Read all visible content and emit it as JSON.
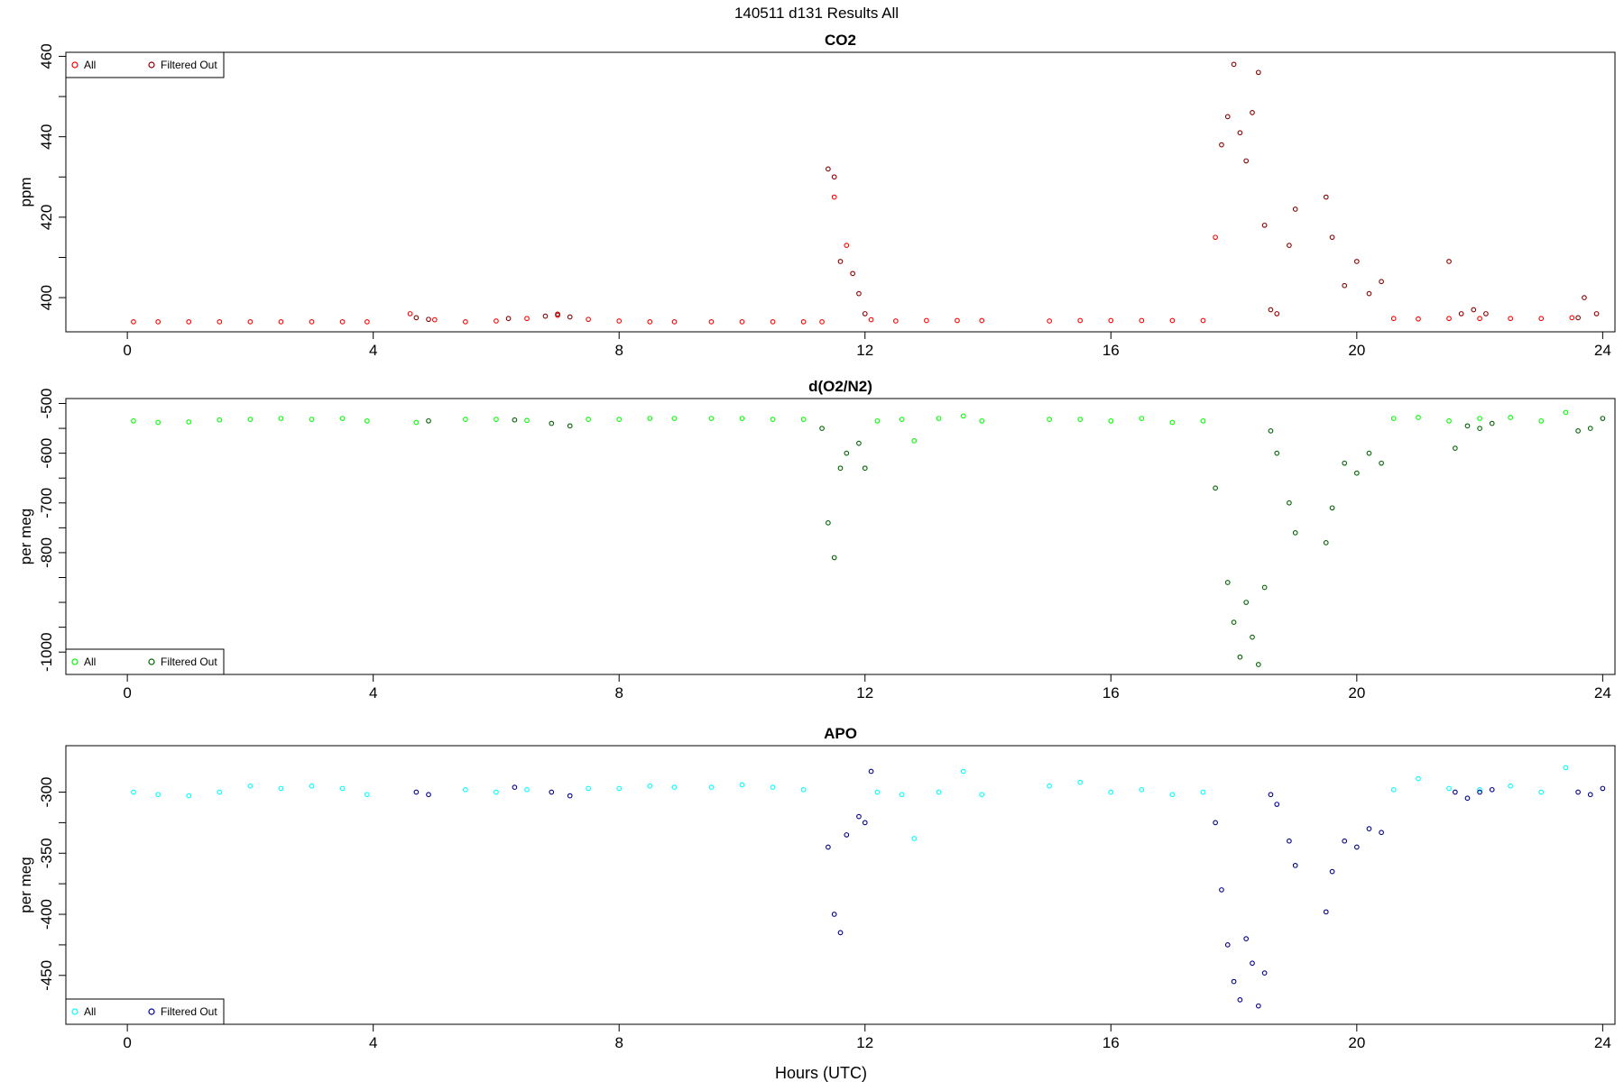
{
  "figure": {
    "title": "140511   d131   Results All",
    "xlabel": "Hours (UTC)"
  },
  "chart_data": [
    {
      "type": "scatter",
      "title": "CO2",
      "xlabel": "Hours (UTC)",
      "ylabel": "ppm",
      "xlim": [
        -1,
        24.2
      ],
      "ylim": [
        391.5,
        461
      ],
      "xticks": [
        0,
        4,
        8,
        12,
        16,
        20,
        24
      ],
      "yticks": [
        400,
        420,
        440,
        460
      ],
      "grid": false,
      "legend_position": "top-left",
      "series": [
        {
          "name": "All",
          "color": "#ff0000",
          "points": [
            [
              0.1,
              394
            ],
            [
              0.5,
              394
            ],
            [
              1.0,
              394
            ],
            [
              1.5,
              394
            ],
            [
              2.0,
              394
            ],
            [
              2.5,
              394
            ],
            [
              3.0,
              394
            ],
            [
              3.5,
              394
            ],
            [
              3.9,
              394
            ],
            [
              4.6,
              396
            ],
            [
              5.0,
              394.5
            ],
            [
              5.5,
              394
            ],
            [
              6.0,
              394.2
            ],
            [
              6.5,
              394.8
            ],
            [
              7.0,
              395.6
            ],
            [
              7.5,
              394.6
            ],
            [
              8.0,
              394.2
            ],
            [
              8.5,
              394
            ],
            [
              8.9,
              394
            ],
            [
              9.5,
              394
            ],
            [
              10.0,
              394
            ],
            [
              10.5,
              394
            ],
            [
              11.0,
              394
            ],
            [
              11.3,
              394
            ],
            [
              11.5,
              425
            ],
            [
              11.7,
              413
            ],
            [
              12.1,
              394.5
            ],
            [
              12.5,
              394.2
            ],
            [
              13.0,
              394.3
            ],
            [
              13.5,
              394.3
            ],
            [
              13.9,
              394.3
            ],
            [
              15.0,
              394.2
            ],
            [
              15.5,
              394.3
            ],
            [
              16.0,
              394.3
            ],
            [
              16.5,
              394.3
            ],
            [
              17.0,
              394.3
            ],
            [
              17.5,
              394.3
            ],
            [
              17.7,
              415
            ],
            [
              20.6,
              394.8
            ],
            [
              21.0,
              394.7
            ],
            [
              21.5,
              394.8
            ],
            [
              22.0,
              394.8
            ],
            [
              22.5,
              394.8
            ],
            [
              23.0,
              394.8
            ],
            [
              23.5,
              395
            ]
          ]
        },
        {
          "name": "Filtered Out",
          "color": "#8b0000",
          "points": [
            [
              4.7,
              395
            ],
            [
              4.9,
              394.6
            ],
            [
              6.2,
              394.8
            ],
            [
              6.8,
              395.4
            ],
            [
              7.0,
              395.9
            ],
            [
              7.2,
              395.2
            ],
            [
              11.4,
              432
            ],
            [
              11.5,
              430
            ],
            [
              11.6,
              409
            ],
            [
              11.8,
              406
            ],
            [
              11.9,
              401
            ],
            [
              12.0,
              396
            ],
            [
              17.8,
              438
            ],
            [
              17.9,
              445
            ],
            [
              18.0,
              458
            ],
            [
              18.1,
              441
            ],
            [
              18.2,
              434
            ],
            [
              18.3,
              446
            ],
            [
              18.4,
              456
            ],
            [
              18.5,
              418
            ],
            [
              18.6,
              397
            ],
            [
              18.7,
              396
            ],
            [
              18.9,
              413
            ],
            [
              19.0,
              422
            ],
            [
              19.5,
              425
            ],
            [
              19.6,
              415
            ],
            [
              19.8,
              403
            ],
            [
              20.0,
              409
            ],
            [
              20.2,
              401
            ],
            [
              20.4,
              404
            ],
            [
              21.5,
              409
            ],
            [
              21.7,
              396
            ],
            [
              21.9,
              397
            ],
            [
              22.1,
              396
            ],
            [
              23.6,
              395
            ],
            [
              23.7,
              400
            ],
            [
              23.9,
              396
            ]
          ]
        }
      ]
    },
    {
      "type": "scatter",
      "title": "d(O2/N2)",
      "xlabel": "Hours (UTC)",
      "ylabel": "per meg",
      "xlim": [
        -1,
        24.2
      ],
      "ylim": [
        -1045,
        -490
      ],
      "xticks": [
        0,
        4,
        8,
        12,
        16,
        20,
        24
      ],
      "yticks": [
        -500,
        -600,
        -700,
        -800,
        -900,
        -1000
      ],
      "ytick_labels": [
        "-500",
        "-600",
        "-700",
        "-800",
        "",
        "-1000"
      ],
      "grid": false,
      "legend_position": "bottom-left",
      "series": [
        {
          "name": "All",
          "color": "#00ff00",
          "points": [
            [
              0.1,
              -535
            ],
            [
              0.5,
              -538
            ],
            [
              1.0,
              -537
            ],
            [
              1.5,
              -533
            ],
            [
              2.0,
              -532
            ],
            [
              2.5,
              -530
            ],
            [
              3.0,
              -532
            ],
            [
              3.5,
              -530
            ],
            [
              3.9,
              -535
            ],
            [
              4.7,
              -538
            ],
            [
              5.5,
              -532
            ],
            [
              6.0,
              -532
            ],
            [
              6.5,
              -534
            ],
            [
              7.5,
              -532
            ],
            [
              8.0,
              -532
            ],
            [
              8.5,
              -530
            ],
            [
              8.9,
              -530
            ],
            [
              9.5,
              -530
            ],
            [
              10.0,
              -530
            ],
            [
              10.5,
              -532
            ],
            [
              11.0,
              -532
            ],
            [
              12.2,
              -535
            ],
            [
              12.6,
              -532
            ],
            [
              12.8,
              -575
            ],
            [
              13.2,
              -530
            ],
            [
              13.6,
              -525
            ],
            [
              13.9,
              -535
            ],
            [
              15.0,
              -532
            ],
            [
              15.5,
              -532
            ],
            [
              16.0,
              -535
            ],
            [
              16.5,
              -530
            ],
            [
              17.0,
              -538
            ],
            [
              17.5,
              -535
            ],
            [
              20.6,
              -530
            ],
            [
              21.0,
              -528
            ],
            [
              21.5,
              -535
            ],
            [
              22.0,
              -530
            ],
            [
              22.5,
              -528
            ],
            [
              23.0,
              -535
            ],
            [
              23.4,
              -518
            ]
          ]
        },
        {
          "name": "Filtered Out",
          "color": "#006400",
          "points": [
            [
              4.9,
              -535
            ],
            [
              6.3,
              -533
            ],
            [
              6.9,
              -540
            ],
            [
              7.2,
              -545
            ],
            [
              11.3,
              -550
            ],
            [
              11.4,
              -740
            ],
            [
              11.5,
              -810
            ],
            [
              11.6,
              -630
            ],
            [
              11.7,
              -600
            ],
            [
              11.9,
              -580
            ],
            [
              12.0,
              -630
            ],
            [
              17.7,
              -670
            ],
            [
              17.9,
              -860
            ],
            [
              18.0,
              -940
            ],
            [
              18.1,
              -1010
            ],
            [
              18.2,
              -900
            ],
            [
              18.3,
              -970
            ],
            [
              18.4,
              -1025
            ],
            [
              18.5,
              -870
            ],
            [
              18.6,
              -555
            ],
            [
              18.7,
              -600
            ],
            [
              18.9,
              -700
            ],
            [
              19.0,
              -760
            ],
            [
              19.5,
              -780
            ],
            [
              19.6,
              -710
            ],
            [
              19.8,
              -620
            ],
            [
              20.0,
              -640
            ],
            [
              20.2,
              -600
            ],
            [
              20.4,
              -620
            ],
            [
              21.6,
              -590
            ],
            [
              21.8,
              -545
            ],
            [
              22.0,
              -550
            ],
            [
              22.2,
              -540
            ],
            [
              23.6,
              -555
            ],
            [
              23.8,
              -550
            ],
            [
              24.0,
              -530
            ]
          ]
        }
      ]
    },
    {
      "type": "scatter",
      "title": "APO",
      "xlabel": "Hours (UTC)",
      "ylabel": "per meg",
      "xlim": [
        -1,
        24.2
      ],
      "ylim": [
        -490,
        -262
      ],
      "xticks": [
        0,
        4,
        8,
        12,
        16,
        20,
        24
      ],
      "yticks": [
        -300,
        -350,
        -400,
        -450
      ],
      "grid": false,
      "legend_position": "bottom-left",
      "series": [
        {
          "name": "All",
          "color": "#00ffff",
          "points": [
            [
              0.1,
              -300
            ],
            [
              0.5,
              -302
            ],
            [
              1.0,
              -303
            ],
            [
              1.5,
              -300
            ],
            [
              2.0,
              -295
            ],
            [
              2.5,
              -297
            ],
            [
              3.0,
              -295
            ],
            [
              3.5,
              -297
            ],
            [
              3.9,
              -302
            ],
            [
              5.5,
              -298
            ],
            [
              6.0,
              -300
            ],
            [
              6.5,
              -298
            ],
            [
              7.5,
              -297
            ],
            [
              8.0,
              -297
            ],
            [
              8.5,
              -295
            ],
            [
              8.9,
              -296
            ],
            [
              9.5,
              -296
            ],
            [
              10.0,
              -294
            ],
            [
              10.5,
              -296
            ],
            [
              11.0,
              -298
            ],
            [
              12.2,
              -300
            ],
            [
              12.6,
              -302
            ],
            [
              12.8,
              -338
            ],
            [
              13.2,
              -300
            ],
            [
              13.6,
              -283
            ],
            [
              13.9,
              -302
            ],
            [
              15.0,
              -295
            ],
            [
              15.5,
              -292
            ],
            [
              16.0,
              -300
            ],
            [
              16.5,
              -298
            ],
            [
              17.0,
              -302
            ],
            [
              17.5,
              -300
            ],
            [
              20.6,
              -298
            ],
            [
              21.0,
              -289
            ],
            [
              21.5,
              -297
            ],
            [
              22.0,
              -298
            ],
            [
              22.5,
              -295
            ],
            [
              23.0,
              -300
            ],
            [
              23.4,
              -280
            ]
          ]
        },
        {
          "name": "Filtered Out",
          "color": "#00008b",
          "points": [
            [
              4.7,
              -300
            ],
            [
              4.9,
              -302
            ],
            [
              6.3,
              -296
            ],
            [
              6.9,
              -300
            ],
            [
              7.2,
              -303
            ],
            [
              11.4,
              -345
            ],
            [
              11.5,
              -400
            ],
            [
              11.6,
              -415
            ],
            [
              11.7,
              -335
            ],
            [
              11.9,
              -320
            ],
            [
              12.0,
              -325
            ],
            [
              12.1,
              -283
            ],
            [
              17.7,
              -325
            ],
            [
              17.8,
              -380
            ],
            [
              17.9,
              -425
            ],
            [
              18.0,
              -455
            ],
            [
              18.1,
              -470
            ],
            [
              18.2,
              -420
            ],
            [
              18.3,
              -440
            ],
            [
              18.4,
              -475
            ],
            [
              18.5,
              -448
            ],
            [
              18.6,
              -302
            ],
            [
              18.7,
              -310
            ],
            [
              18.9,
              -340
            ],
            [
              19.0,
              -360
            ],
            [
              19.5,
              -398
            ],
            [
              19.6,
              -365
            ],
            [
              19.8,
              -340
            ],
            [
              20.0,
              -345
            ],
            [
              20.2,
              -330
            ],
            [
              20.4,
              -333
            ],
            [
              21.6,
              -300
            ],
            [
              21.8,
              -305
            ],
            [
              22.0,
              -300
            ],
            [
              22.2,
              -298
            ],
            [
              23.6,
              -300
            ],
            [
              23.8,
              -302
            ],
            [
              24.0,
              -297
            ]
          ]
        }
      ]
    }
  ]
}
